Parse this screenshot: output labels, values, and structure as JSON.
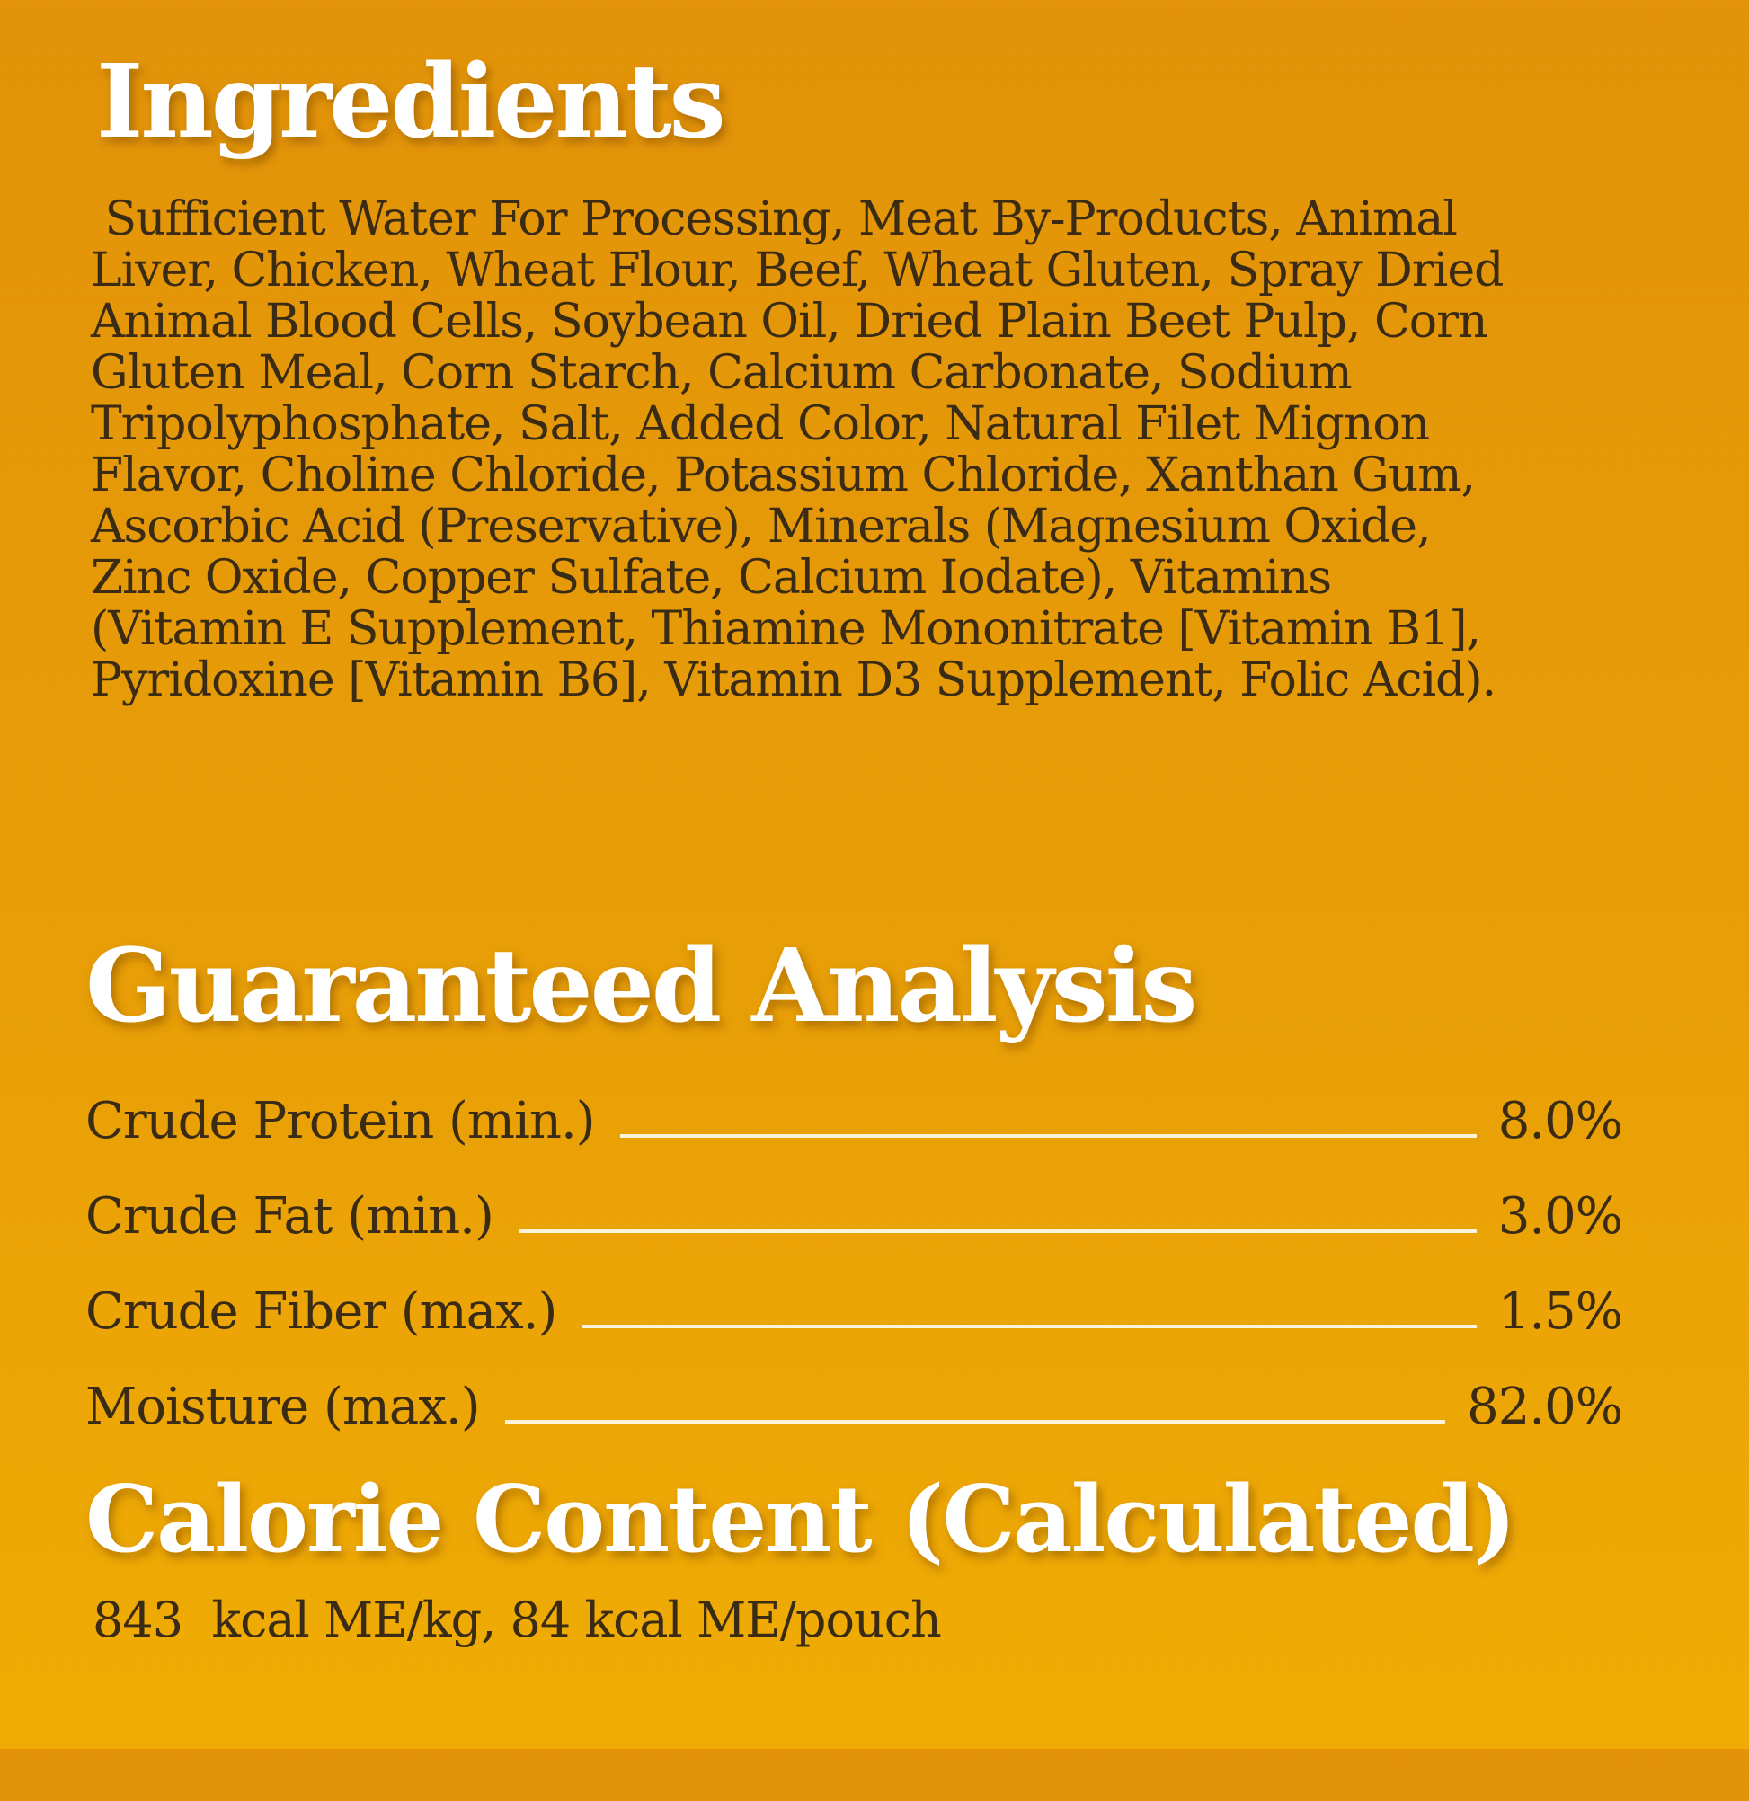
{
  "label": {
    "colors": {
      "background_top": "#E29309",
      "background_bottom": "#F0AC04",
      "body_text": "#3A2B15",
      "heading_text": "#FFFFFF",
      "leader_line": "#FDF4DC"
    },
    "ingredients": {
      "title": "Ingredients",
      "body": " Sufficient Water For Processing, Meat By-Products, Animal\nLiver, Chicken, Wheat Flour, Beef, Wheat Gluten, Spray Dried\nAnimal Blood Cells, Soybean Oil, Dried Plain Beet Pulp, Corn\nGluten Meal, Corn Starch, Calcium Carbonate, Sodium\nTripolyphosphate, Salt, Added Color, Natural Filet Mignon\nFlavor, Choline Chloride, Potassium Chloride, Xanthan Gum,\nAscorbic Acid (Preservative), Minerals (Magnesium Oxide,\nZinc Oxide, Copper Sulfate, Calcium Iodate), Vitamins\n(Vitamin E Supplement, Thiamine Mononitrate [Vitamin B1],\nPyridoxine [Vitamin B6], Vitamin D3 Supplement, Folic Acid)."
    },
    "guaranteed_analysis": {
      "title": "Guaranteed Analysis",
      "rows": [
        {
          "label": "Crude Protein (min.)",
          "value": "8.0%"
        },
        {
          "label": "Crude Fat (min.)",
          "value": "3.0%"
        },
        {
          "label": "Crude Fiber (max.)",
          "value": "1.5%"
        },
        {
          "label": "Moisture (max.)",
          "value": "82.0%"
        }
      ]
    },
    "calorie_content": {
      "title": "Calorie Content (Calculated)",
      "detail": "843  kcal ME/kg, 84 kcal ME/pouch"
    }
  }
}
